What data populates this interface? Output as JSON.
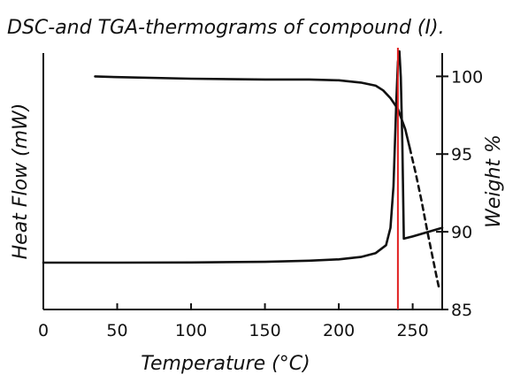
{
  "chart_data": {
    "type": "line",
    "title": "DSC-and TGA-thermograms of compound (I).",
    "xlabel": "Temperature (°C)",
    "ylabel_left": "Heat Flow (mW)",
    "ylabel_right": "Weight %",
    "xlim": [
      0,
      270
    ],
    "x_ticks": [
      0,
      50,
      100,
      150,
      200,
      250
    ],
    "y_right_lim": [
      85,
      101.5
    ],
    "y_right_ticks": [
      85,
      90,
      95,
      100
    ],
    "left_axis_has_ticks": false,
    "grid": false,
    "legend": "none",
    "series": [
      {
        "axis": "left",
        "style": "solid",
        "color": "#111111",
        "x": [
          0,
          50,
          100,
          150,
          180,
          200,
          215,
          225,
          232,
          235,
          237,
          239,
          240,
          241,
          242,
          243,
          244,
          250,
          260,
          270
        ],
        "y": [
          0.0,
          0.02,
          0.08,
          0.35,
          0.9,
          1.5,
          2.6,
          4.4,
          8.0,
          16,
          35,
          75,
          92,
          97,
          85,
          55,
          11,
          12,
          14,
          16
        ]
      },
      {
        "axis": "right",
        "style": "solid",
        "color": "#111111",
        "x": [
          35,
          50,
          100,
          150,
          180,
          200,
          215,
          225,
          230,
          235,
          240,
          245,
          248
        ],
        "y": [
          100.0,
          99.95,
          99.85,
          99.8,
          99.8,
          99.75,
          99.6,
          99.4,
          99.1,
          98.6,
          97.9,
          96.6,
          95.4
        ]
      },
      {
        "axis": "right",
        "style": "dashed",
        "color": "#111111",
        "x": [
          248,
          252,
          256,
          260,
          263,
          266,
          268
        ],
        "y": [
          95.4,
          93.8,
          92.0,
          90.0,
          88.6,
          87.2,
          86.3
        ]
      }
    ],
    "annotations": [
      {
        "type": "vertical-line",
        "x": 240,
        "color": "#e02020"
      }
    ]
  }
}
